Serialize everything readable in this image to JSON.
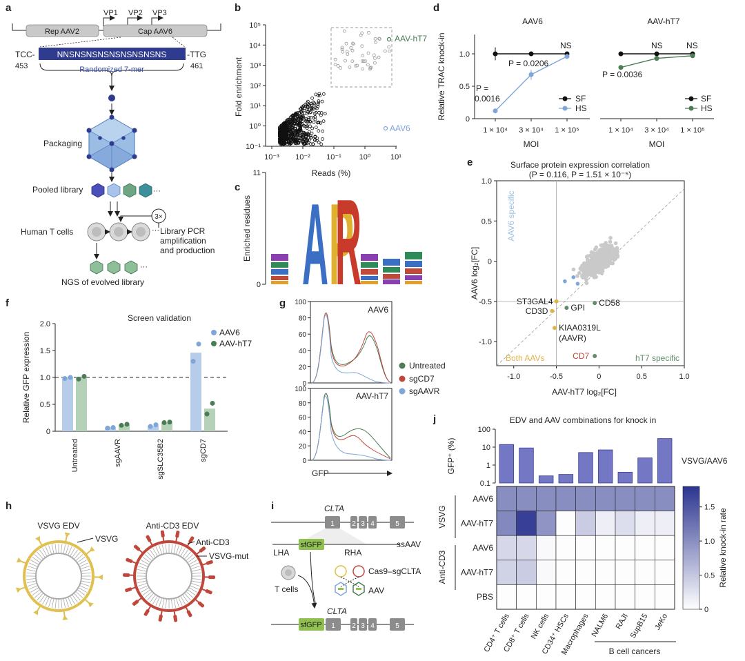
{
  "panels": {
    "a": {
      "letter": "a",
      "vp1": "VP1",
      "vp2": "VP2",
      "vp3": "VP3",
      "rep": "Rep AAV2",
      "cap": "Cap AAV6",
      "tcc": "TCC-",
      "ttg": "-TTG",
      "insert": "NNSNSNSNSNSNSNSNSNS",
      "n453": "453",
      "n461": "461",
      "randomized": "Randomized 7-mer",
      "packaging": "Packaging",
      "pooled": "Pooled library",
      "ellipsis": "···",
      "tcells": "Human T cells",
      "threex": "3×",
      "pcr1": "Library PCR",
      "pcr2": "amplification",
      "pcr3": "and production",
      "ngs": "NGS of evolved library"
    },
    "b": {
      "letter": "b",
      "ylabel": "Fold enrichment",
      "xlabel": "Reads (%)",
      "yticks": [
        "10⁵",
        "10⁴",
        "10³",
        "10²",
        "10¹",
        "10⁰",
        "10⁻¹"
      ],
      "xticks": [
        "10⁻³",
        "10⁻²",
        "10⁻¹",
        "10⁰",
        "10¹"
      ],
      "label_hT7": "AAV-hT7",
      "label_aav6": "AAV6"
    },
    "c": {
      "letter": "c",
      "ylabel": "Enriched residues",
      "ytop": "11",
      "ybottom": "0",
      "big": [
        "A",
        "P",
        "R"
      ]
    },
    "d": {
      "letter": "d",
      "title_left": "AAV6",
      "title_right": "AAV-hT7",
      "ylabel": "Relative TRAC knock-in",
      "yticks": [
        "1.0",
        "0.5",
        "0"
      ],
      "xticks": [
        "1 × 10⁴",
        "3 × 10⁴",
        "1 × 10⁵"
      ],
      "xlabel": "MOI",
      "ns": "NS",
      "p1": "P = 0.0206",
      "p2a": "P =",
      "p2b": "0.0016",
      "p3": "P = 0.0036",
      "sf": "SF",
      "hs": "HS"
    },
    "e": {
      "letter": "e",
      "title": "Surface protein expression correlation",
      "subtitle": "(P = 0.116, P = 1.51 × 10⁻⁵)",
      "ylabel": "AAV6 log₂[FC]",
      "xlabel": "AAV-hT7 log₂[FC]",
      "yticks": [
        "1.0",
        "0.5",
        "0",
        "-0.5",
        "-1.0"
      ],
      "xticks": [
        "-1.0",
        "-0.5",
        "0",
        "0.5",
        "1.0"
      ],
      "aav6_specific": "AAV6 specific",
      "both": "Both AAVs",
      "ht7_specific": "hT7 specific",
      "genes": {
        "st3gal4": "ST3GAL4",
        "cd3d": "CD3D",
        "gpi": "GPI",
        "cd58": "CD58",
        "kiaa": "KIAA0319L",
        "aavr": "(AAVR)",
        "cd7": "CD7"
      }
    },
    "f": {
      "letter": "f",
      "title": "Screen validation",
      "ylabel": "Relative GFP expression",
      "yticks": [
        "2.0",
        "1.5",
        "1.0",
        "0.5",
        "0"
      ],
      "legend": [
        "AAV6",
        "AAV-hT7"
      ]
    },
    "g": {
      "letter": "g",
      "label_top": "AAV6",
      "label_bottom": "AAV-hT7",
      "yticks": [
        "100",
        "80",
        "60",
        "40",
        "20",
        "0"
      ],
      "xlabel": "GFP",
      "legend": [
        "Untreated",
        "sgCD7",
        "sgAAVR"
      ]
    },
    "h": {
      "letter": "h",
      "title_left": "VSVG EDV",
      "title_right": "Anti-CD3 EDV",
      "vsvg": "VSVG",
      "anticd3": "Anti-CD3",
      "vsvgmut": "VSVG-mut"
    },
    "i": {
      "letter": "i",
      "clta": "CLTA",
      "exons": [
        "1",
        "2",
        "3",
        "4",
        "5"
      ],
      "lha": "LHA",
      "sfgfp": "sfGFP",
      "rha": "RHA",
      "ssaav": "ssAAV",
      "cas9": "Cas9–sgCLTA",
      "tcells": "T cells",
      "aav": "AAV"
    },
    "j": {
      "letter": "j",
      "title": "EDV and AAV combinations for knock in",
      "bar_ylabel": "GFP⁺ (%)",
      "bar_yticks": [
        "100",
        "10",
        "1",
        "0.1"
      ],
      "bar_label": "VSVG/AAV6",
      "row_labels": [
        "AAV6",
        "AAV-hT7",
        "AAV6",
        "AAV-hT7",
        "PBS"
      ],
      "group_vsvg": "VSVG",
      "group_cd3": "Anti-CD3",
      "cbar_label": "Relative knock-in rate",
      "cbar_ticks": [
        "1.5",
        "1.0",
        "0.5",
        "0"
      ],
      "b_cell": "B cell cancers"
    }
  },
  "chart_data": [
    {
      "panel": "b",
      "type": "scatter",
      "title": "",
      "xlabel": "Reads (%)",
      "ylabel": "Fold enrichment",
      "xscale": "log",
      "yscale": "log",
      "xlim": [
        0.0006,
        10
      ],
      "ylim": [
        0.1,
        100000
      ],
      "highlight": [
        {
          "name": "AAV-hT7",
          "x": 8,
          "y": 20000
        },
        {
          "name": "AAV6",
          "x": 2,
          "y": 0.5
        }
      ]
    },
    {
      "panel": "d-left",
      "type": "line",
      "title": "AAV6",
      "xlabel": "MOI",
      "ylabel": "Relative TRAC knock-in",
      "categories": [
        "1 × 10⁴",
        "3 × 10⁴",
        "1 × 10⁵"
      ],
      "series": [
        {
          "name": "SF",
          "values": [
            1.0,
            1.0,
            1.0
          ],
          "color": "#111111"
        },
        {
          "name": "HS",
          "values": [
            0.12,
            0.68,
            0.96
          ],
          "color": "#7ea6d8"
        }
      ],
      "ylim": [
        0,
        1.2
      ]
    },
    {
      "panel": "d-right",
      "type": "line",
      "title": "AAV-hT7",
      "xlabel": "MOI",
      "categories": [
        "1 × 10⁴",
        "3 × 10⁴",
        "1 × 10⁵"
      ],
      "series": [
        {
          "name": "SF",
          "values": [
            1.0,
            1.0,
            1.0
          ],
          "color": "#111111"
        },
        {
          "name": "HS",
          "values": [
            0.79,
            0.93,
            0.97
          ],
          "color": "#4a7d55"
        }
      ],
      "ylim": [
        0,
        1.2
      ]
    },
    {
      "panel": "e",
      "type": "scatter",
      "title": "Surface protein expression correlation",
      "xlabel": "AAV-hT7 log₂[FC]",
      "ylabel": "AAV6 log₂[FC]",
      "xlim": [
        -1.2,
        1.0
      ],
      "ylim": [
        -1.3,
        1.0
      ],
      "points": [
        {
          "name": "ST3GAL4",
          "x": -0.5,
          "y": -0.5,
          "color": "#e0b34a"
        },
        {
          "name": "CD3D",
          "x": -0.55,
          "y": -0.62,
          "color": "#e0b34a"
        },
        {
          "name": "GPI",
          "x": -0.38,
          "y": -0.58,
          "color": "#5f8c6a"
        },
        {
          "name": "CD58",
          "x": -0.05,
          "y": -0.52,
          "color": "#5f8c6a"
        },
        {
          "name": "KIAA0319L (AAVR)",
          "x": -0.52,
          "y": -0.83,
          "color": "#e0b34a"
        },
        {
          "name": "CD7",
          "x": -0.05,
          "y": -1.18,
          "color": "#5f8c6a"
        }
      ]
    },
    {
      "panel": "f",
      "type": "bar",
      "title": "Screen validation",
      "ylabel": "Relative GFP expression",
      "categories": [
        "Untreated",
        "sgAAVR",
        "sgSLC35B2",
        "sgCD7"
      ],
      "series": [
        {
          "name": "AAV6",
          "values": [
            1.0,
            0.07,
            0.1,
            1.46
          ],
          "dots": [
            [
              0.98,
              1.0
            ],
            [
              0.06,
              0.07
            ],
            [
              0.09,
              0.12
            ],
            [
              1.3,
              1.62
            ]
          ],
          "color": "#b7cce8",
          "dot": "#7ea6d8"
        },
        {
          "name": "AAV-hT7",
          "values": [
            1.0,
            0.12,
            0.16,
            0.42
          ],
          "dots": [
            [
              0.97,
              1.02
            ],
            [
              0.11,
              0.13
            ],
            [
              0.16,
              0.17
            ],
            [
              0.32,
              0.52
            ]
          ],
          "color": "#b5d1b8",
          "dot": "#4a7d55"
        }
      ],
      "ylim": [
        0,
        2.0
      ],
      "reference_line": 1.0
    },
    {
      "panel": "j-top",
      "type": "bar",
      "title": "EDV and AAV combinations for knock in",
      "ylabel": "GFP⁺ (%)",
      "yscale": "log",
      "categories": [
        "CD4⁺ T cells",
        "CD8⁺ T cells",
        "NK cells",
        "CD34⁺ HSCs",
        "Macrophages",
        "NALM6",
        "RAJI",
        "SupB15",
        "JeKo"
      ],
      "values": [
        14,
        9,
        0.25,
        0.3,
        5,
        7,
        0.4,
        2.5,
        30
      ],
      "ylim": [
        0.1,
        100
      ],
      "legend": "VSVG/AAV6"
    },
    {
      "panel": "j-heatmap",
      "type": "heatmap",
      "rows": [
        "VSVG AAV6",
        "VSVG AAV-hT7",
        "Anti-CD3 AAV6",
        "Anti-CD3 AAV-hT7",
        "PBS"
      ],
      "columns": [
        "CD4⁺ T cells",
        "CD8⁺ T cells",
        "NK cells",
        "CD34⁺ HSCs",
        "Macrophages",
        "NALM6",
        "RAJI",
        "SupB15",
        "JeKo"
      ],
      "values": [
        [
          1.0,
          1.0,
          1.0,
          1.0,
          1.0,
          1.0,
          1.0,
          1.0,
          1.0
        ],
        [
          1.05,
          1.7,
          0.95,
          0.02,
          0.45,
          0.15,
          0.3,
          0.15,
          0.15
        ],
        [
          0.35,
          0.35,
          0.05,
          0.02,
          0.02,
          0.02,
          0.02,
          0.02,
          0.02
        ],
        [
          0.4,
          0.45,
          0.05,
          0.02,
          0.02,
          0.02,
          0.02,
          0.02,
          0.02
        ],
        [
          0.02,
          0.02,
          0.02,
          0.02,
          0.02,
          0.02,
          0.02,
          0.02,
          0.02
        ]
      ],
      "zlim": [
        0,
        1.8
      ],
      "colorbar_label": "Relative knock-in rate"
    }
  ]
}
